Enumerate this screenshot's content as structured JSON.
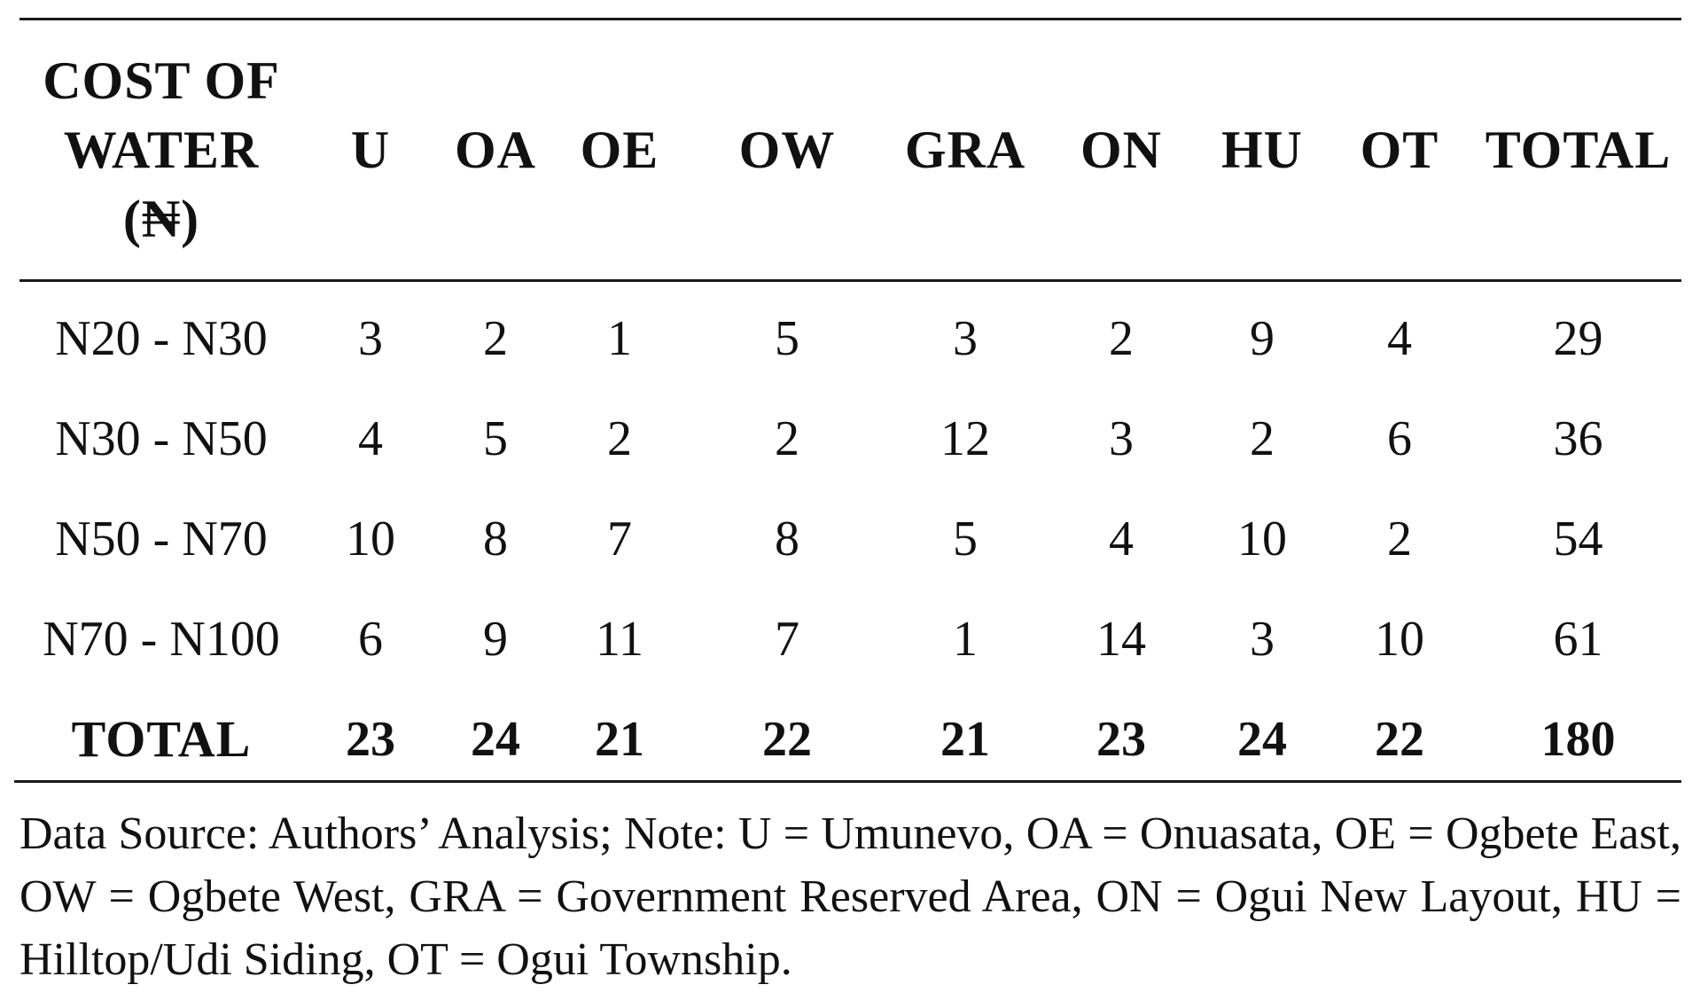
{
  "table": {
    "header": {
      "first_lines": [
        "COST OF",
        "WATER",
        "(₦)"
      ],
      "columns": [
        "U",
        "OA",
        "OE",
        "OW",
        "GRA",
        "ON",
        "HU",
        "OT",
        "TOTAL"
      ]
    },
    "rows": [
      {
        "label": "N20 - N30",
        "values": [
          "3",
          "2",
          "1",
          "5",
          "3",
          "2",
          "9",
          "4",
          "29"
        ]
      },
      {
        "label": "N30 - N50",
        "values": [
          "4",
          "5",
          "2",
          "2",
          "12",
          "3",
          "2",
          "6",
          "36"
        ]
      },
      {
        "label": "N50 - N70",
        "values": [
          "10",
          "8",
          "7",
          "8",
          "5",
          "4",
          "10",
          "2",
          "54"
        ]
      },
      {
        "label": "N70 - N100",
        "values": [
          "6",
          "9",
          "11",
          "7",
          "1",
          "14",
          "3",
          "10",
          "61"
        ]
      }
    ],
    "total_row": {
      "label": "TOTAL",
      "values": [
        "23",
        "24",
        "21",
        "22",
        "21",
        "23",
        "24",
        "22",
        "180"
      ]
    }
  },
  "note": "Data Source: Authors’ Analysis; Note: U = Umunevo, OA = Onuasata, OE = Ogbete East, OW = Ogbete West, GRA = Government Reserved Area, ON = Ogui New Layout, HU = Hilltop/Udi Siding, OT = Ogui Township."
}
